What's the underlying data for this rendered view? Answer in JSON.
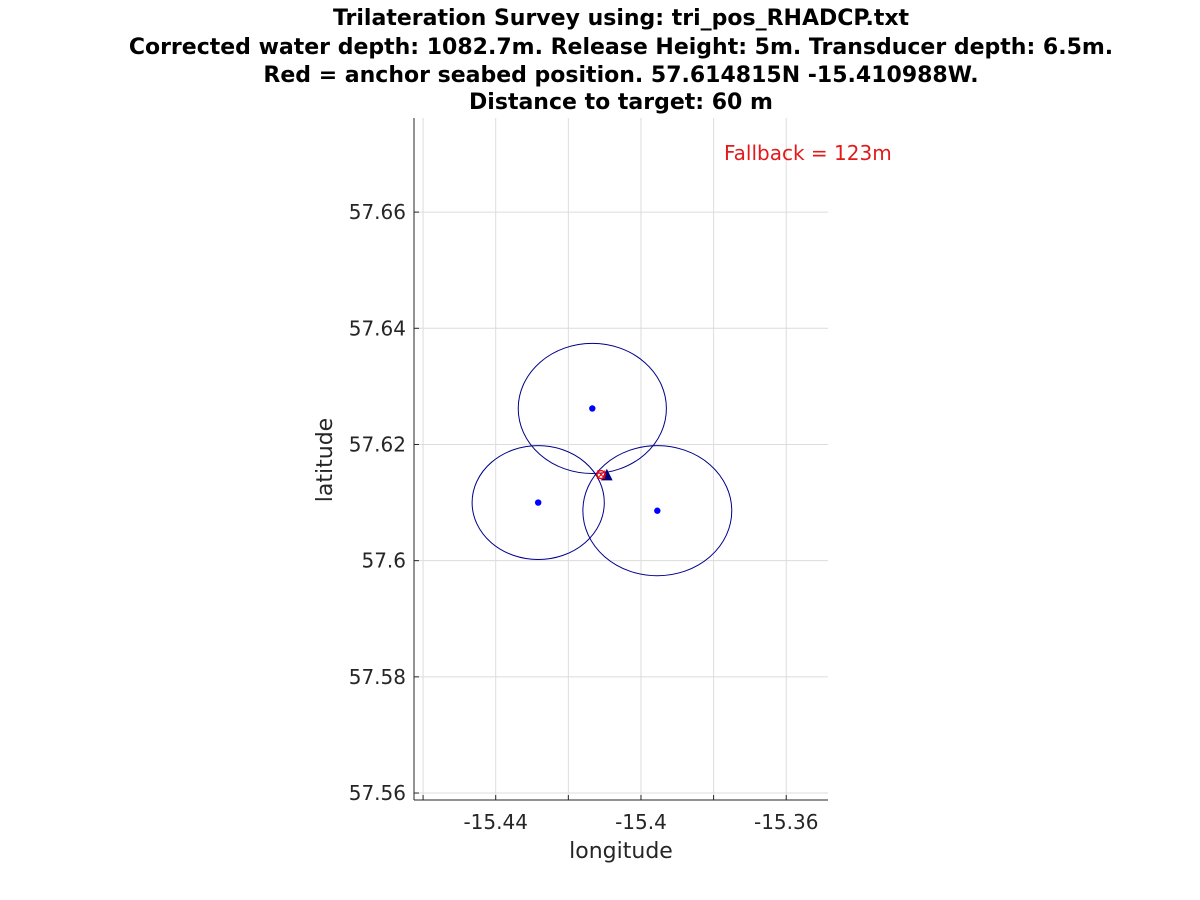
{
  "chart_data": {
    "type": "scatter",
    "title": [
      "Trilateration Survey using: tri_pos_RHADCP.txt",
      "Corrected water depth: 1082.7m. Release Height: 5m. Transducer depth: 6.5m.",
      "Red = anchor seabed position. 57.614815N -15.410988W.",
      "Distance to target: 60 m"
    ],
    "xlabel": "longitude",
    "ylabel": "latitude",
    "xlim": [
      -15.4625,
      -15.3485
    ],
    "ylim": [
      57.5588,
      57.6762
    ],
    "xticks": [
      -15.44,
      -15.4,
      -15.36
    ],
    "xtick_labels": [
      "-15.44",
      "-15.4",
      "-15.36"
    ],
    "xticks_minor": [
      -15.46,
      -15.44,
      -15.42,
      -15.4,
      -15.38,
      -15.36
    ],
    "yticks": [
      57.56,
      57.58,
      57.6,
      57.62,
      57.64,
      57.66
    ],
    "ytick_labels": [
      "57.56",
      "57.58",
      "57.6",
      "57.62",
      "57.64",
      "57.66"
    ],
    "grid": true,
    "annotation": {
      "text": "Fallback =   123m",
      "color": "#e31a1c"
    },
    "colors": {
      "survey_points": "#0000ff",
      "circles": "#00008b",
      "anchor": "#ff0000",
      "target": "#000080"
    },
    "survey_points": [
      {
        "lon": -15.4134,
        "lat": 57.6262,
        "range_lon": 0.0204,
        "range_lat": 0.0112
      },
      {
        "lon": -15.4283,
        "lat": 57.61,
        "range_lon": 0.0182,
        "range_lat": 0.0098
      },
      {
        "lon": -15.3955,
        "lat": 57.6086,
        "range_lon": 0.0205,
        "range_lat": 0.0112
      }
    ],
    "anchor": {
      "lon": -15.410988,
      "lat": 57.614815
    },
    "target": {
      "lon": -15.4094,
      "lat": 57.6146
    }
  }
}
